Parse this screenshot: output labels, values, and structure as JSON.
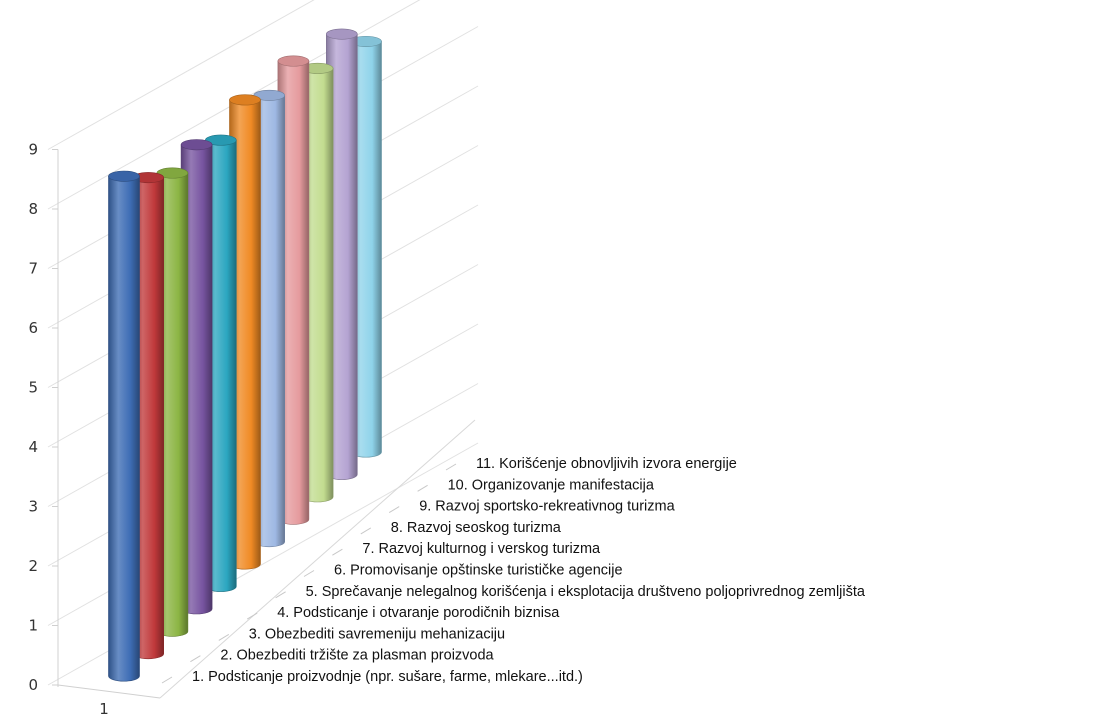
{
  "chart_data": {
    "type": "bar",
    "shape": "3d-cylinder",
    "title": "",
    "xlabel": "",
    "ylabel": "",
    "ylim": [
      0,
      9
    ],
    "yticks": [
      "0",
      "1",
      "2",
      "3",
      "4",
      "5",
      "6",
      "7",
      "8",
      "9"
    ],
    "series_axis_label": "1",
    "grid": true,
    "series": [
      {
        "name": "1. Podsticanje proizvodnje (npr. sušare, farme, mlekare...itd.)",
        "value": 8.4,
        "color": "#3E6DB5"
      },
      {
        "name": "2. Obezbediti tržište za plasman proizvoda",
        "value": 8.0,
        "color": "#C0393B"
      },
      {
        "name": "3. Obezbediti savremeniju mehanizaciju",
        "value": 7.7,
        "color": "#8CB544"
      },
      {
        "name": "4. Podsticanje i otvaranje porodičnih biznisa",
        "value": 7.8,
        "color": "#7754A0"
      },
      {
        "name": "5. Sprečavanje nelegalnog korišćenja i eksplotacija društveno poljoprivrednog zemljišta",
        "value": 7.5,
        "color": "#2BA6C0"
      },
      {
        "name": "6. Promovisanje opštinske turističke agencije",
        "value": 7.8,
        "color": "#F08A24"
      },
      {
        "name": "7. Razvoj kulturnog i verskog turizma",
        "value": 7.5,
        "color": "#9EB8E3"
      },
      {
        "name": "8. Razvoj seoskog turizma",
        "value": 7.7,
        "color": "#E59A9D"
      },
      {
        "name": "9. Razvoj sportsko-rekreativnog turizma",
        "value": 7.2,
        "color": "#C2DC8F"
      },
      {
        "name": "10. Organizovanje manifestacija",
        "value": 7.4,
        "color": "#B4A3D2"
      },
      {
        "name": "11. Korišćenje obnovljivih izvora energije",
        "value": 6.9,
        "color": "#8FD3EA"
      }
    ]
  }
}
